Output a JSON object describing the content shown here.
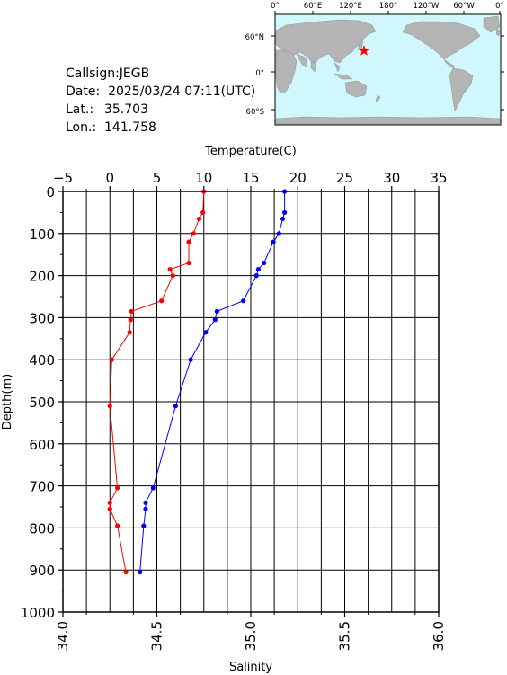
{
  "info": {
    "callsign": "Callsign:JEGB",
    "date": "Date:  2025/03/24 07:11(UTC)",
    "lat_label": "Lat.:",
    "lat_value": "35.703",
    "lon_label": "Lon.:",
    "lon_value": "141.758"
  },
  "map": {
    "top_labels": [
      "0°",
      "60°E",
      "120°E",
      "180°",
      "120°W",
      "60°W",
      "0°"
    ],
    "left_labels": [
      "60°N",
      "0°",
      "60°S"
    ],
    "ocean_color": "#d0f7fb",
    "land_color": "#b4b4b4",
    "marker_color": "#ff0000"
  },
  "chart_data": {
    "type": "line",
    "yaxis": {
      "label": "Depth(m)",
      "range": [
        0,
        1000
      ],
      "inverted": true,
      "ticks": [
        "0",
        "100",
        "200",
        "300",
        "400",
        "500",
        "600",
        "700",
        "800",
        "900",
        "1000"
      ]
    },
    "temperature_axis": {
      "label": "Temperature(C)",
      "range": [
        -5,
        35
      ],
      "position": "top",
      "ticks": [
        "-5",
        "0",
        "5",
        "10",
        "15",
        "20",
        "25",
        "30",
        "35"
      ]
    },
    "salinity_axis": {
      "label": "Salinity",
      "range": [
        34.0,
        36.0
      ],
      "position": "bottom",
      "ticks": [
        "34.0",
        "34.5",
        "35.0",
        "35.5",
        "36.0"
      ]
    },
    "grid": true,
    "series": [
      {
        "color": "#ff0000",
        "axis": "temperature",
        "depth": [
          0,
          50,
          65,
          100,
          120,
          170,
          185,
          200,
          260,
          285,
          305,
          335,
          400,
          510,
          705,
          740,
          755,
          795,
          905
        ],
        "values": [
          10.0,
          9.9,
          9.5,
          8.9,
          8.4,
          8.4,
          6.4,
          6.7,
          5.5,
          2.3,
          2.2,
          2.1,
          0.2,
          0.0,
          0.8,
          0.0,
          0.0,
          0.8,
          1.7
        ]
      },
      {
        "color": "#0000ff",
        "axis": "salinity",
        "depth": [
          0,
          50,
          65,
          100,
          120,
          170,
          185,
          200,
          260,
          285,
          305,
          335,
          400,
          510,
          705,
          740,
          755,
          795,
          905
        ],
        "values": [
          35.18,
          35.18,
          35.17,
          35.15,
          35.12,
          35.07,
          35.04,
          35.03,
          34.96,
          34.82,
          34.81,
          34.76,
          34.68,
          34.6,
          34.48,
          34.44,
          34.44,
          34.43,
          34.41
        ]
      }
    ]
  }
}
